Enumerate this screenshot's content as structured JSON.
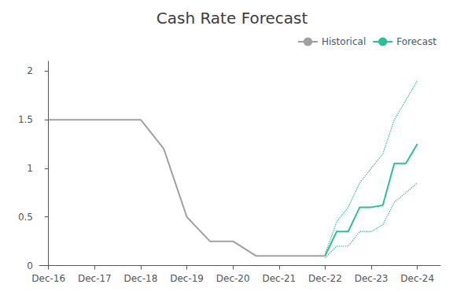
{
  "chart_data": {
    "type": "line",
    "title": "Cash Rate Forecast",
    "xlim": [
      -0.2,
      8.5
    ],
    "xticks": [
      {
        "value": 0,
        "label": "Dec-16"
      },
      {
        "value": 1,
        "label": "Dec-17"
      },
      {
        "value": 2,
        "label": "Dec-18"
      },
      {
        "value": 3,
        "label": "Dec-19"
      },
      {
        "value": 4,
        "label": "Dec-20"
      },
      {
        "value": 5,
        "label": "Dec-21"
      },
      {
        "value": 6,
        "label": "Dec-22"
      },
      {
        "value": 7,
        "label": "Dec-23"
      },
      {
        "value": 8,
        "label": "Dec-24"
      }
    ],
    "ylim": [
      -0.02,
      2.1
    ],
    "yticks": [
      0,
      0.5,
      1,
      1.5,
      2
    ],
    "grid": false,
    "legend": "upper right",
    "series": [
      {
        "name": "Historical",
        "color": "#A0A0A0",
        "line_style": "solid",
        "x": [
          0,
          1,
          2,
          2.5,
          3,
          3.5,
          4,
          4.5,
          5,
          5.5,
          6
        ],
        "values": [
          1.5,
          1.5,
          1.5,
          1.2,
          0.5,
          0.25,
          0.25,
          0.1,
          0.1,
          0.1,
          0.1
        ]
      },
      {
        "color": "#2EBD9A",
        "line_style": "dotted",
        "x": [
          6,
          6.25,
          6.5,
          6.75,
          7,
          7.25,
          7.5,
          7.75,
          8
        ],
        "values": [
          0.12,
          0.45,
          0.6,
          0.85,
          1.0,
          1.15,
          1.5,
          1.7,
          1.9
        ]
      },
      {
        "color": "#2EBD9A",
        "line_style": "dotted",
        "x": [
          6,
          6.25,
          6.5,
          6.75,
          7,
          7.25,
          7.5,
          7.75,
          8
        ],
        "values": [
          0.08,
          0.2,
          0.2,
          0.35,
          0.35,
          0.42,
          0.65,
          0.75,
          0.85
        ]
      },
      {
        "name": "Forecast",
        "color": "#2EBD9A",
        "line_style": "solid",
        "x": [
          6,
          6.25,
          6.5,
          6.75,
          7,
          7.25,
          7.5,
          7.75,
          8
        ],
        "values": [
          0.1,
          0.35,
          0.35,
          0.6,
          0.6,
          0.62,
          1.05,
          1.05,
          1.25
        ]
      }
    ]
  }
}
